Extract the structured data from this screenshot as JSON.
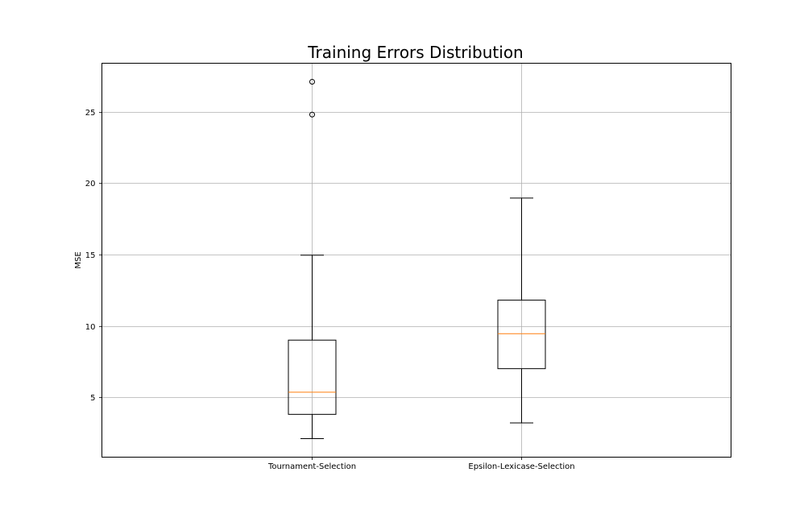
{
  "chart_data": {
    "type": "box",
    "title": "Training Errors Distribution",
    "xlabel": "",
    "ylabel": "MSE",
    "ylim": [
      0.8,
      28.4
    ],
    "yticks": [
      5,
      10,
      15,
      20,
      25
    ],
    "grid": true,
    "categories": [
      "Tournament-Selection",
      "Epsilon-Lexicase-Selection"
    ],
    "boxes": [
      {
        "label": "Tournament-Selection",
        "whisker_low": 2.1,
        "q1": 3.8,
        "median": 5.35,
        "q3": 9.0,
        "whisker_high": 14.95,
        "outliers": [
          24.8,
          27.1
        ]
      },
      {
        "label": "Epsilon-Lexicase-Selection",
        "whisker_low": 3.2,
        "q1": 7.0,
        "median": 9.45,
        "q3": 11.8,
        "whisker_high": 18.95,
        "outliers": []
      }
    ],
    "colors": {
      "box": "#000000",
      "median": "#ff7f0e",
      "grid": "#b0b0b0"
    }
  }
}
